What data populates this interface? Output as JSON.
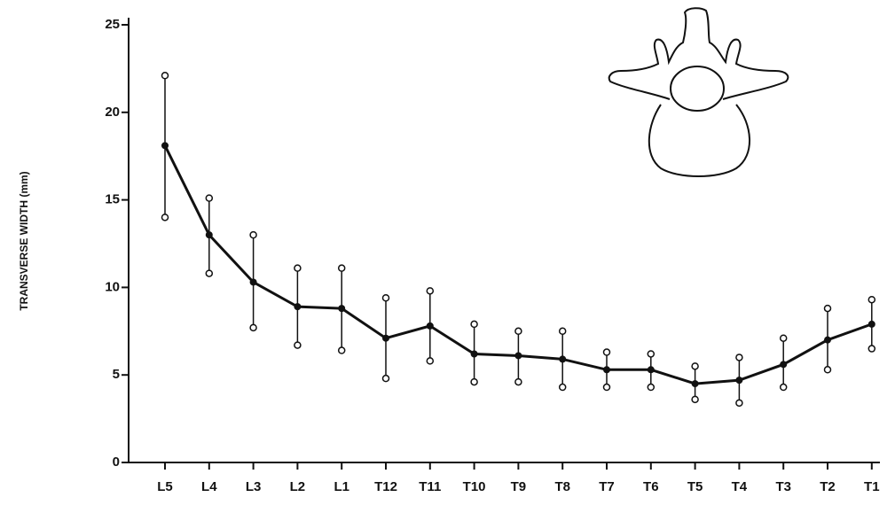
{
  "chart_data": {
    "type": "line",
    "y_label": "TRANSVERSE WIDTH (mm)",
    "categories": [
      "L5",
      "L4",
      "L3",
      "L2",
      "L1",
      "T12",
      "T11",
      "T10",
      "T9",
      "T8",
      "T7",
      "T6",
      "T5",
      "T4",
      "T3",
      "T2",
      "T1"
    ],
    "series": [
      {
        "color": "#111111",
        "values": [
          18.1,
          13.0,
          10.3,
          8.9,
          8.8,
          7.1,
          7.8,
          6.2,
          6.1,
          5.9,
          5.3,
          5.3,
          4.5,
          4.7,
          5.6,
          7.0,
          7.9
        ],
        "upper": [
          22.1,
          15.1,
          13.0,
          11.1,
          11.1,
          9.4,
          9.8,
          7.9,
          7.5,
          7.5,
          6.3,
          6.2,
          5.5,
          6.0,
          7.1,
          8.8,
          9.3
        ],
        "lower": [
          14.0,
          10.8,
          7.7,
          6.7,
          6.4,
          4.8,
          5.8,
          4.6,
          4.6,
          4.3,
          4.3,
          4.3,
          3.6,
          3.4,
          4.3,
          5.3,
          6.5
        ]
      }
    ],
    "ylim": [
      0,
      25
    ],
    "yticks": [
      0,
      5,
      10,
      15,
      20,
      25
    ],
    "grid": false
  }
}
